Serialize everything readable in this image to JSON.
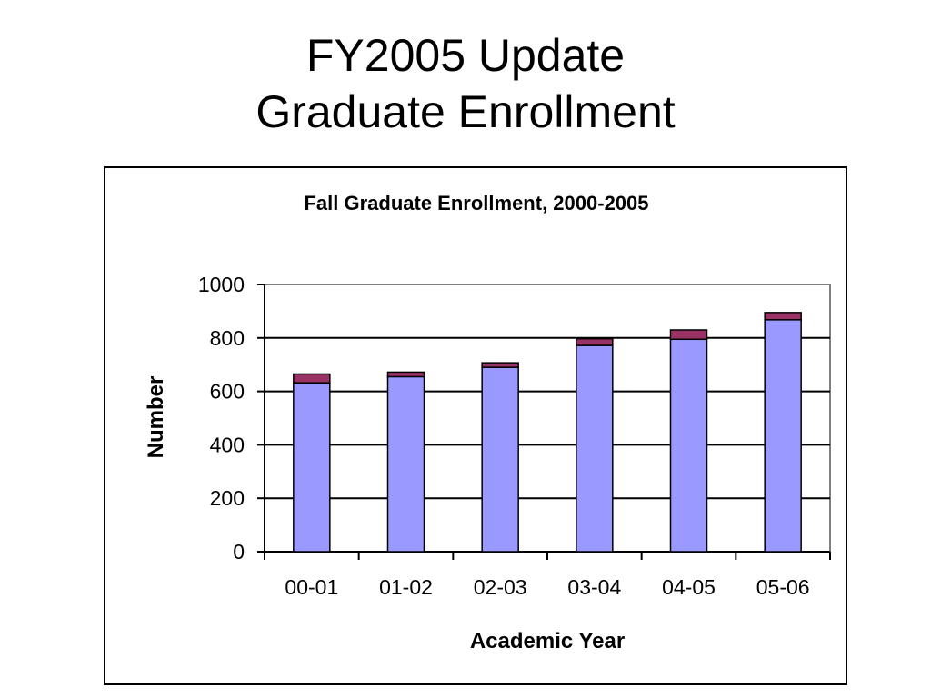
{
  "slide": {
    "title_line1": "FY2005 Update",
    "title_line2": "Graduate Enrollment"
  },
  "chart_data": {
    "type": "bar",
    "stacked": true,
    "title": "Fall Graduate Enrollment, 2000-2005",
    "xlabel": "Academic Year",
    "ylabel": "Number",
    "categories": [
      "00-01",
      "01-02",
      "02-03",
      "03-04",
      "04-05",
      "05-06"
    ],
    "series": [
      {
        "values": [
          632,
          655,
          690,
          772,
          795,
          868
        ],
        "color": "#9999FF"
      },
      {
        "values": [
          33,
          17,
          17,
          25,
          35,
          27
        ],
        "color": "#993366"
      }
    ],
    "ylim": [
      0,
      1000
    ],
    "yticks": [
      0,
      200,
      400,
      600,
      800,
      1000
    ],
    "grid": true,
    "legend": "none"
  }
}
